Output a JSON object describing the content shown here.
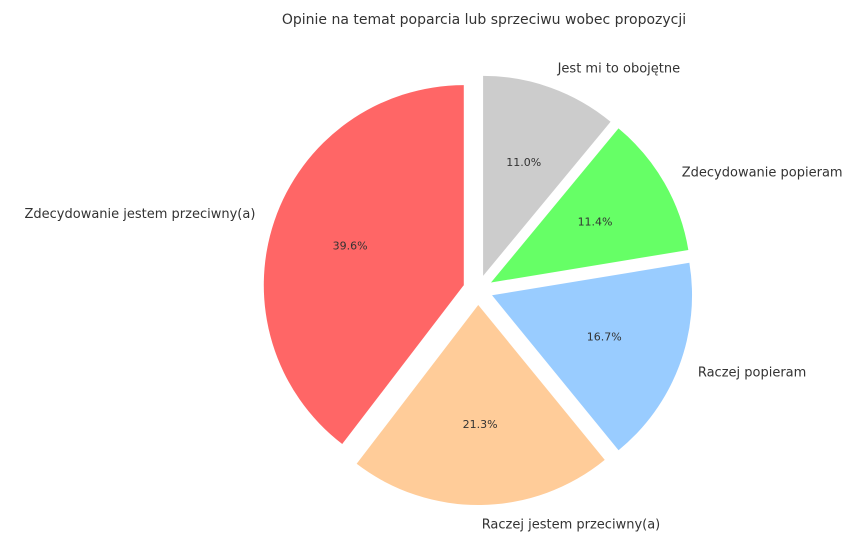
{
  "chart_data": {
    "type": "pie",
    "title": "Opinie na temat poparcia lub sprzeciwu wobec propozycji",
    "categories": [
      "Zdecydowanie jestem przeciwny(a)",
      "Raczej jestem przeciwny(a)",
      "Raczej popieram",
      "Zdecydowanie popieram",
      "Jest mi to obojętne"
    ],
    "values": [
      39.6,
      21.3,
      16.7,
      11.4,
      11.0
    ],
    "value_labels": [
      "39.6%",
      "21.3%",
      "16.7%",
      "11.4%",
      "11.0%"
    ],
    "colors": [
      "#ff6666",
      "#ffcc99",
      "#99ccff",
      "#66ff66",
      "#cccccc"
    ]
  }
}
